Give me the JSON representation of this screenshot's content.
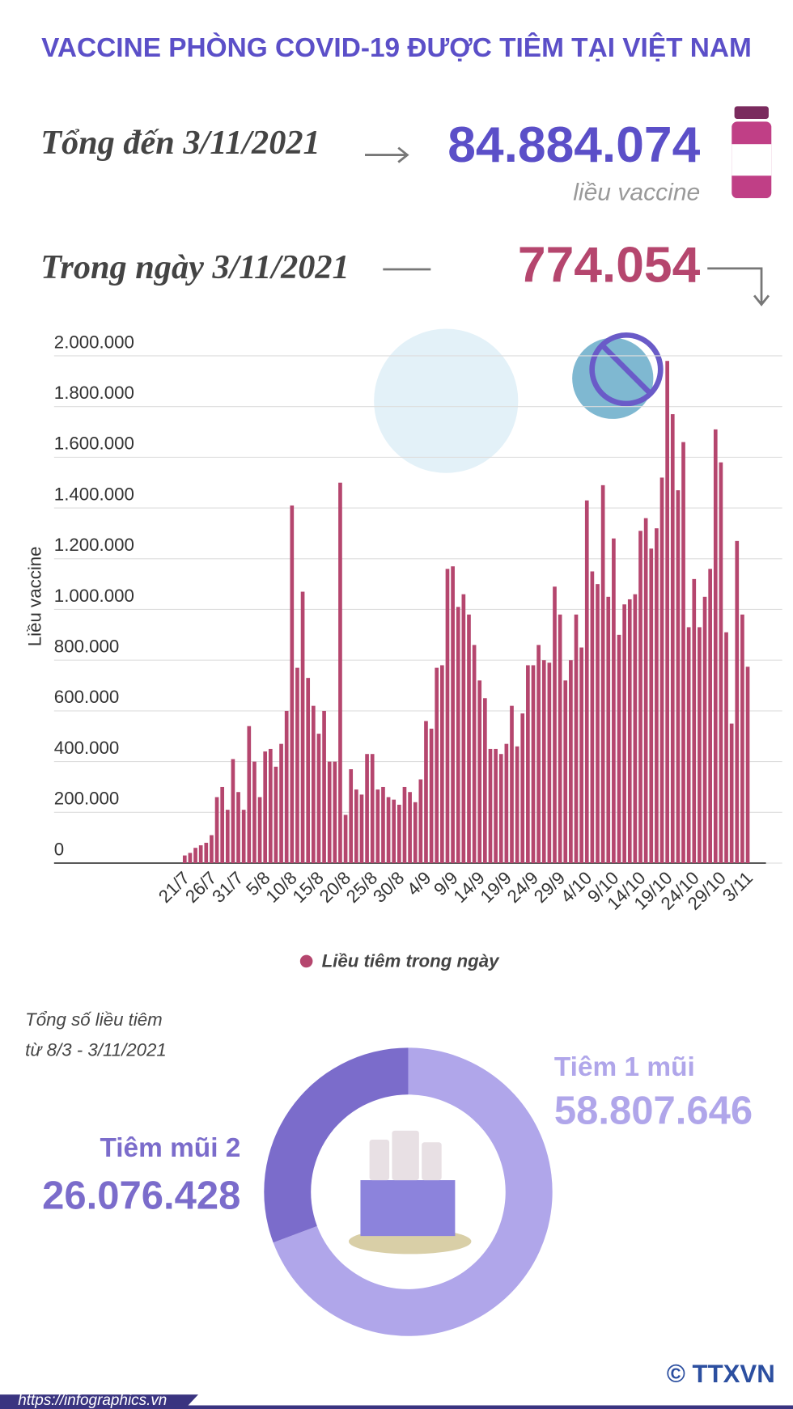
{
  "header": {
    "title": "VACCINE PHÒNG COVID-19 ĐƯỢC TIÊM TẠI VIỆT NAM",
    "total_label": "Tổng đến 3/11/2021",
    "total_value": "84.884.074",
    "total_unit": "liều vaccine",
    "day_label": "Trong ngày 3/11/2021",
    "day_value": "774.054"
  },
  "chart_data": [
    {
      "type": "bar",
      "ylabel": "Liều vaccine",
      "categories": [
        "21/7",
        null,
        null,
        null,
        null,
        "26/7",
        null,
        null,
        null,
        null,
        "31/7",
        null,
        null,
        null,
        null,
        "5/8",
        null,
        null,
        null,
        null,
        "10/8",
        null,
        null,
        null,
        null,
        "15/8",
        null,
        null,
        null,
        null,
        "20/8",
        null,
        null,
        null,
        null,
        "25/8",
        null,
        null,
        null,
        null,
        "30/8",
        null,
        null,
        null,
        null,
        "4/9",
        null,
        null,
        null,
        null,
        "9/9",
        null,
        null,
        null,
        null,
        "14/9",
        null,
        null,
        null,
        null,
        "19/9",
        null,
        null,
        null,
        null,
        "24/9",
        null,
        null,
        null,
        null,
        "29/9",
        null,
        null,
        null,
        null,
        "4/10",
        null,
        null,
        null,
        null,
        "9/10",
        null,
        null,
        null,
        null,
        "14/10",
        null,
        null,
        null,
        null,
        "19/10",
        null,
        null,
        null,
        null,
        "24/10",
        null,
        null,
        null,
        null,
        "29/10",
        null,
        null,
        null,
        null,
        "3/11"
      ],
      "series": [
        {
          "name": "Liều tiêm trong ngày",
          "color": "#b5466e",
          "values": [
            30000,
            40000,
            60000,
            70000,
            80000,
            110000,
            260000,
            300000,
            210000,
            410000,
            280000,
            210000,
            540000,
            400000,
            260000,
            440000,
            450000,
            380000,
            470000,
            600000,
            1410000,
            770000,
            1070000,
            730000,
            620000,
            510000,
            600000,
            400000,
            400000,
            1500000,
            190000,
            370000,
            290000,
            270000,
            430000,
            430000,
            290000,
            300000,
            260000,
            250000,
            230000,
            300000,
            280000,
            240000,
            330000,
            560000,
            530000,
            770000,
            780000,
            1160000,
            1170000,
            1010000,
            1060000,
            980000,
            860000,
            720000,
            650000,
            450000,
            450000,
            430000,
            470000,
            620000,
            460000,
            590000,
            780000,
            780000,
            860000,
            800000,
            790000,
            1090000,
            980000,
            720000,
            800000,
            980000,
            850000,
            1430000,
            1150000,
            1100000,
            1490000,
            1050000,
            1280000,
            900000,
            1020000,
            1040000,
            1060000,
            1310000,
            1360000,
            1240000,
            1320000,
            1520000,
            1980000,
            1770000,
            1470000,
            1660000,
            930000,
            1120000,
            930000,
            1050000,
            1160000,
            1710000,
            1580000,
            910000,
            550000,
            1270000,
            980000,
            774054
          ]
        }
      ],
      "ylim": [
        0,
        2000000
      ],
      "yticks": [
        0,
        {
          "value": 200000,
          "label": "200.000"
        },
        {
          "value": 400000,
          "label": "400.000"
        },
        {
          "value": 600000,
          "label": "600.000"
        },
        {
          "value": 800000,
          "label": "800.000"
        },
        {
          "value": 1000000,
          "label": "1.000.000"
        },
        {
          "value": 1200000,
          "label": "1.200.000"
        },
        {
          "value": 1400000,
          "label": "1.400.000"
        },
        {
          "value": 1600000,
          "label": "1.600.000"
        },
        {
          "value": 1800000,
          "label": "1.800.000"
        },
        {
          "value": 2000000,
          "label": "2.000.000"
        }
      ],
      "grid": true
    },
    {
      "type": "pie",
      "title": "Tổng số liều tiêm",
      "subtitle": "từ 8/3 - 3/11/2021",
      "categories": [
        "Tiêm 1 mũi",
        "Tiêm mũi 2"
      ],
      "values": [
        58807646,
        26076428
      ],
      "value_labels": [
        "58.807.646",
        "26.076.428"
      ],
      "colors": [
        "#b0a6ea",
        "#7b6ccb"
      ]
    }
  ],
  "footer": {
    "url": "https://infographics.vn",
    "brand": "© TTXVN"
  }
}
